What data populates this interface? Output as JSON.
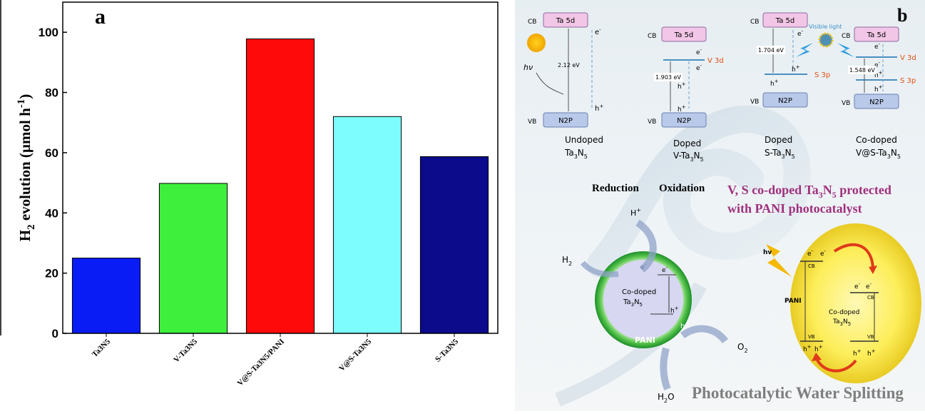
{
  "chart_data": {
    "type": "bar",
    "panel_label": "a",
    "categories": [
      "Ta3N5",
      "V-Ta3N5",
      "V@S-Ta3N5/PANI",
      "V@S-Ta3N5",
      "S-Ta3N5"
    ],
    "values": [
      25,
      49.8,
      97.8,
      72,
      58.7
    ],
    "colors": [
      "#0a1cf5",
      "#3ef03c",
      "#ff0a0a",
      "#7dfdfd",
      "#0b0b8c"
    ],
    "ylabel": {
      "main": "H",
      "sub": "2",
      "mid": " evolution (µmol h",
      "sup": "-1",
      "end": ")"
    },
    "xlabel": "",
    "ylim": [
      0,
      110
    ],
    "yticks": [
      0,
      20,
      40,
      60,
      80,
      100
    ],
    "grid": false
  },
  "scheme": {
    "panel_label": "b",
    "cb": "CB",
    "vb": "VB",
    "ta5d": "Ta 5d",
    "n2p": "N2P",
    "e": "e",
    "h": "h",
    "minus": "-",
    "plus": "+",
    "hv": "hν",
    "hv2": "hv",
    "gap_undoped": "2.12 eV",
    "gap_v": "1.903 eV",
    "gap_s": "1.704 eV",
    "gap_co": "1.548 eV",
    "v3d": "V 3d",
    "s3p": "S 3p",
    "visible_light": "Visible light",
    "labels": [
      {
        "l1": "Undoped",
        "l2a": "Ta",
        "s1": "3",
        "l2b": "N",
        "s2": "5"
      },
      {
        "l1": "Doped",
        "l2a": "V-Ta",
        "s1": "3",
        "l2b": "N",
        "s2": "5"
      },
      {
        "l1": "Doped",
        "l2a": "S-Ta",
        "s1": "3",
        "l2b": "N",
        "s2": "5"
      },
      {
        "l1": "Co-doped",
        "l2a": "V@S-Ta",
        "s1": "3",
        "l2b": "N",
        "s2": "5"
      }
    ],
    "reduction": "Reduction",
    "oxidation": "Oxidation",
    "headline1a": "V, S co-doped Ta",
    "headline1s1": "3",
    "headline1b": "N",
    "headline1s2": "5",
    "headline1c": " protected",
    "headline2": "with PANI photocatalyst",
    "h_ion": "H",
    "h2": "H",
    "two": "2",
    "o2": "O",
    "h2o_a": "H",
    "h2o_b": "O",
    "codoped": "Co-doped",
    "ta": "Ta",
    "three": "3",
    "n": "N",
    "five": "5",
    "pani": "PANI",
    "footer": "Photocatalytic Water Splitting"
  }
}
